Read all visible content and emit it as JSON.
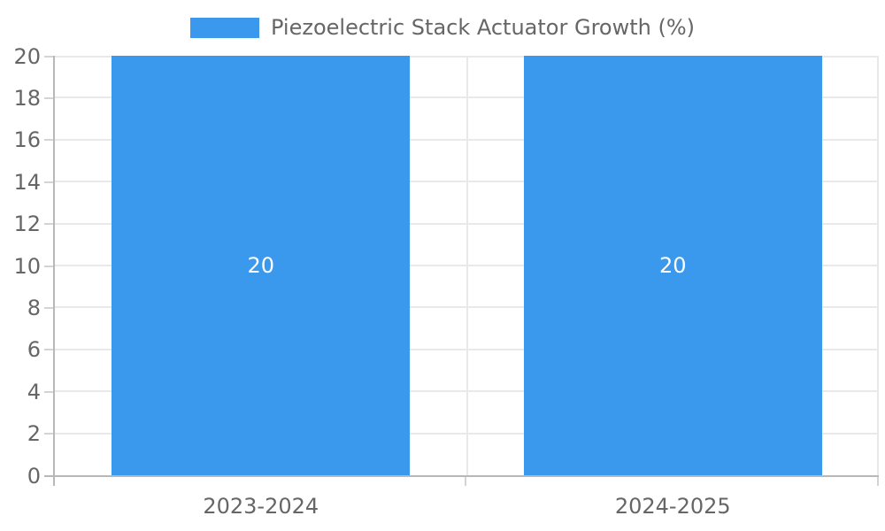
{
  "chart_data": {
    "type": "bar",
    "title": "Piezoelectric Stack Actuator Growth (%)",
    "categories": [
      "2023-2024",
      "2024-2025"
    ],
    "series": [
      {
        "name": "Piezoelectric Stack Actuator Growth (%)",
        "values": [
          20,
          20
        ]
      }
    ],
    "bar_value_labels": [
      "20",
      "20"
    ],
    "xlabel": "",
    "ylabel": "",
    "ylim": [
      0,
      20
    ],
    "yticks": [
      0,
      2,
      4,
      6,
      8,
      10,
      12,
      14,
      16,
      18,
      20
    ],
    "grid": true,
    "legend_position": "top",
    "show_bar_labels": true,
    "colors": {
      "bar": "#3a99ec",
      "text": "#666666",
      "axis": "#b8b8b8",
      "grid": "#e9e9e9",
      "tick": "#d4d4d4",
      "value_label": "#ffffff",
      "background": "#ffffff"
    }
  }
}
